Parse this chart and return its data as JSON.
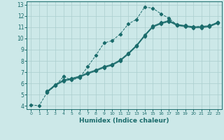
{
  "title": "",
  "xlabel": "Humidex (Indice chaleur)",
  "ylabel": "",
  "bg_color": "#cce8e8",
  "line_color": "#1a6b6b",
  "grid_color": "#aacece",
  "xlim": [
    -0.5,
    23.5
  ],
  "ylim": [
    3.7,
    13.3
  ],
  "xticks": [
    0,
    1,
    2,
    3,
    4,
    5,
    6,
    7,
    8,
    9,
    10,
    11,
    12,
    13,
    14,
    15,
    16,
    17,
    18,
    19,
    20,
    21,
    22,
    23
  ],
  "yticks": [
    4,
    5,
    6,
    7,
    8,
    9,
    10,
    11,
    12,
    13
  ],
  "series": [
    {
      "x": [
        0,
        1,
        2,
        3,
        4,
        5,
        6,
        7,
        8,
        9,
        10,
        11,
        12,
        13,
        14,
        15,
        16,
        17,
        18,
        19,
        20,
        21,
        22,
        23
      ],
      "y": [
        4.1,
        4.0,
        5.2,
        5.8,
        6.6,
        6.3,
        6.5,
        7.5,
        8.5,
        9.6,
        9.8,
        10.4,
        11.3,
        11.7,
        12.8,
        12.7,
        12.2,
        11.8,
        11.2,
        11.1,
        11.0,
        11.1,
        11.1,
        11.4
      ],
      "style": "--",
      "marker": "D",
      "markersize": 2.2,
      "linewidth": 0.7
    },
    {
      "x": [
        2,
        3,
        4,
        5,
        6,
        7,
        8,
        9,
        10,
        11,
        12,
        13,
        14,
        15,
        16,
        17,
        18,
        19,
        20,
        21,
        22,
        23
      ],
      "y": [
        5.2,
        5.8,
        6.2,
        6.35,
        6.55,
        6.85,
        7.1,
        7.4,
        7.6,
        8.0,
        8.6,
        9.3,
        10.2,
        11.0,
        11.3,
        11.5,
        11.15,
        11.05,
        10.95,
        10.95,
        11.05,
        11.35
      ],
      "style": "-",
      "marker": "D",
      "markersize": 2.2,
      "linewidth": 0.7
    },
    {
      "x": [
        2,
        3,
        4,
        5,
        6,
        7,
        8,
        9,
        10,
        11,
        12,
        13,
        14,
        15,
        16,
        17,
        18,
        19,
        20,
        21,
        22,
        23
      ],
      "y": [
        5.25,
        5.85,
        6.25,
        6.4,
        6.6,
        6.9,
        7.15,
        7.45,
        7.65,
        8.05,
        8.65,
        9.35,
        10.25,
        11.05,
        11.35,
        11.55,
        11.2,
        11.1,
        11.0,
        11.0,
        11.1,
        11.4
      ],
      "style": "-",
      "marker": "D",
      "markersize": 2.2,
      "linewidth": 0.7
    },
    {
      "x": [
        2,
        3,
        4,
        5,
        6,
        7,
        8,
        9,
        10,
        11,
        12,
        13,
        14,
        15,
        16,
        17,
        18,
        19,
        20,
        21,
        22,
        23
      ],
      "y": [
        5.3,
        5.9,
        6.3,
        6.45,
        6.65,
        6.95,
        7.2,
        7.5,
        7.7,
        8.1,
        8.7,
        9.4,
        10.3,
        11.1,
        11.4,
        11.6,
        11.25,
        11.15,
        11.05,
        11.05,
        11.15,
        11.45
      ],
      "style": "-",
      "marker": "D",
      "markersize": 2.2,
      "linewidth": 0.7
    }
  ]
}
